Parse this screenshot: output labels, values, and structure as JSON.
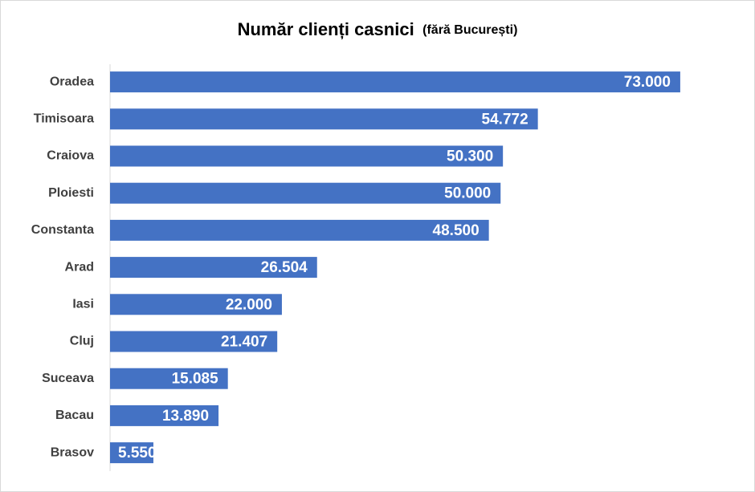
{
  "chart_data": {
    "type": "barh",
    "title": "Număr clienți casnici",
    "subtitle": "(fără București)",
    "categories": [
      "Oradea",
      "Timisoara",
      "Craiova",
      "Ploiesti",
      "Constanta",
      "Arad",
      "Iasi",
      "Cluj",
      "Suceava",
      "Bacau",
      "Brasov"
    ],
    "values": [
      73000,
      54772,
      50300,
      50000,
      48500,
      26504,
      22000,
      21407,
      15085,
      13890,
      5550
    ],
    "value_labels": [
      "73.000",
      "54.772",
      "50.300",
      "50.000",
      "48.500",
      "26.504",
      "22.000",
      "21.407",
      "15.085",
      "13.890",
      "5.550"
    ],
    "color": "#4472c4",
    "xlim": [
      0,
      80000
    ]
  }
}
